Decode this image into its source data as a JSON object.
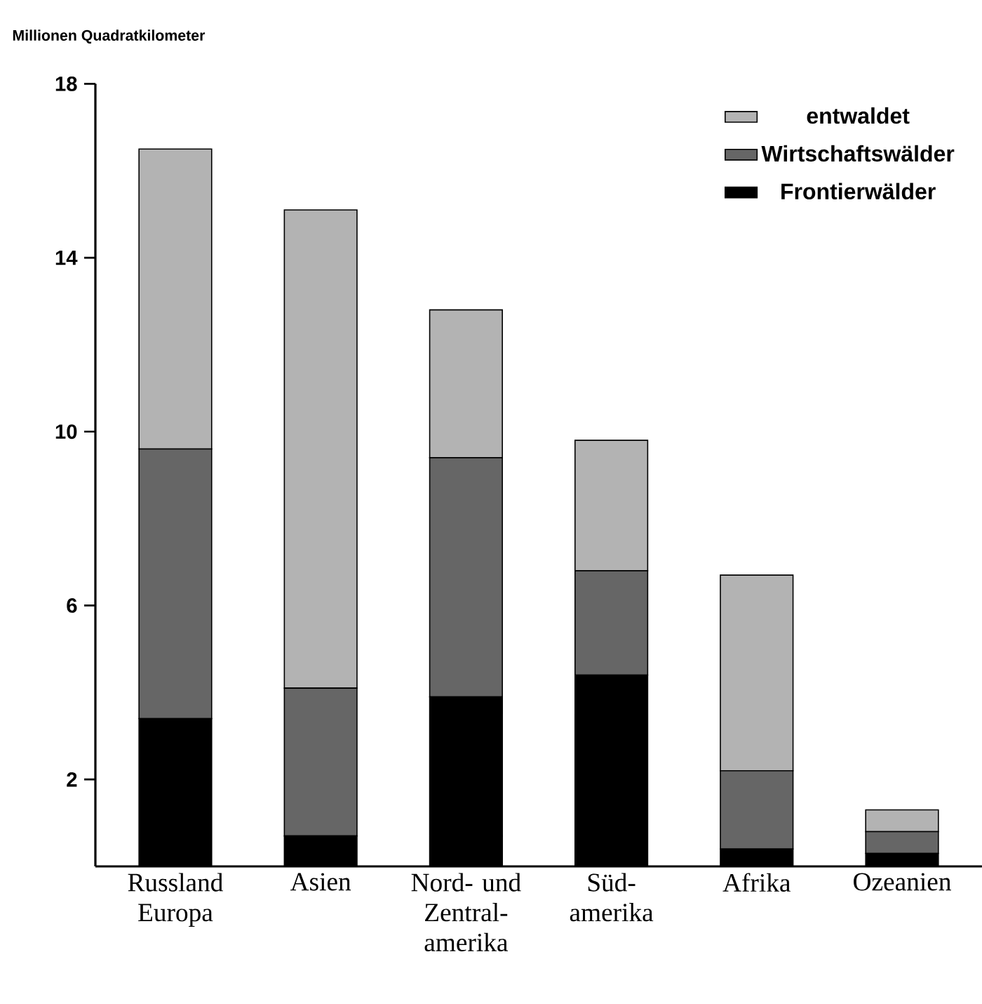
{
  "chart_data": {
    "type": "bar",
    "stacked": true,
    "ylabel": "Millionen Quadratkilometer",
    "categories": [
      "Russland Europa",
      "Asien",
      "Nord- und Zentral-amerika",
      "Süd-amerika",
      "Afrika",
      "Ozeanien"
    ],
    "series": [
      {
        "name": "Frontierwälder",
        "color": "#000000",
        "values": [
          3.4,
          0.7,
          3.9,
          4.4,
          0.4,
          0.3
        ]
      },
      {
        "name": "Wirtschaftswälder",
        "color": "#666666",
        "values": [
          6.2,
          3.4,
          5.5,
          2.4,
          1.8,
          0.5
        ]
      },
      {
        "name": "entwaldet",
        "color": "#b3b3b3",
        "values": [
          6.9,
          11.0,
          3.4,
          3.0,
          4.5,
          0.5
        ]
      }
    ],
    "ylim": [
      0,
      18
    ],
    "yticks": [
      2,
      6,
      10,
      14,
      18
    ],
    "legend": "top right",
    "grid": false
  }
}
